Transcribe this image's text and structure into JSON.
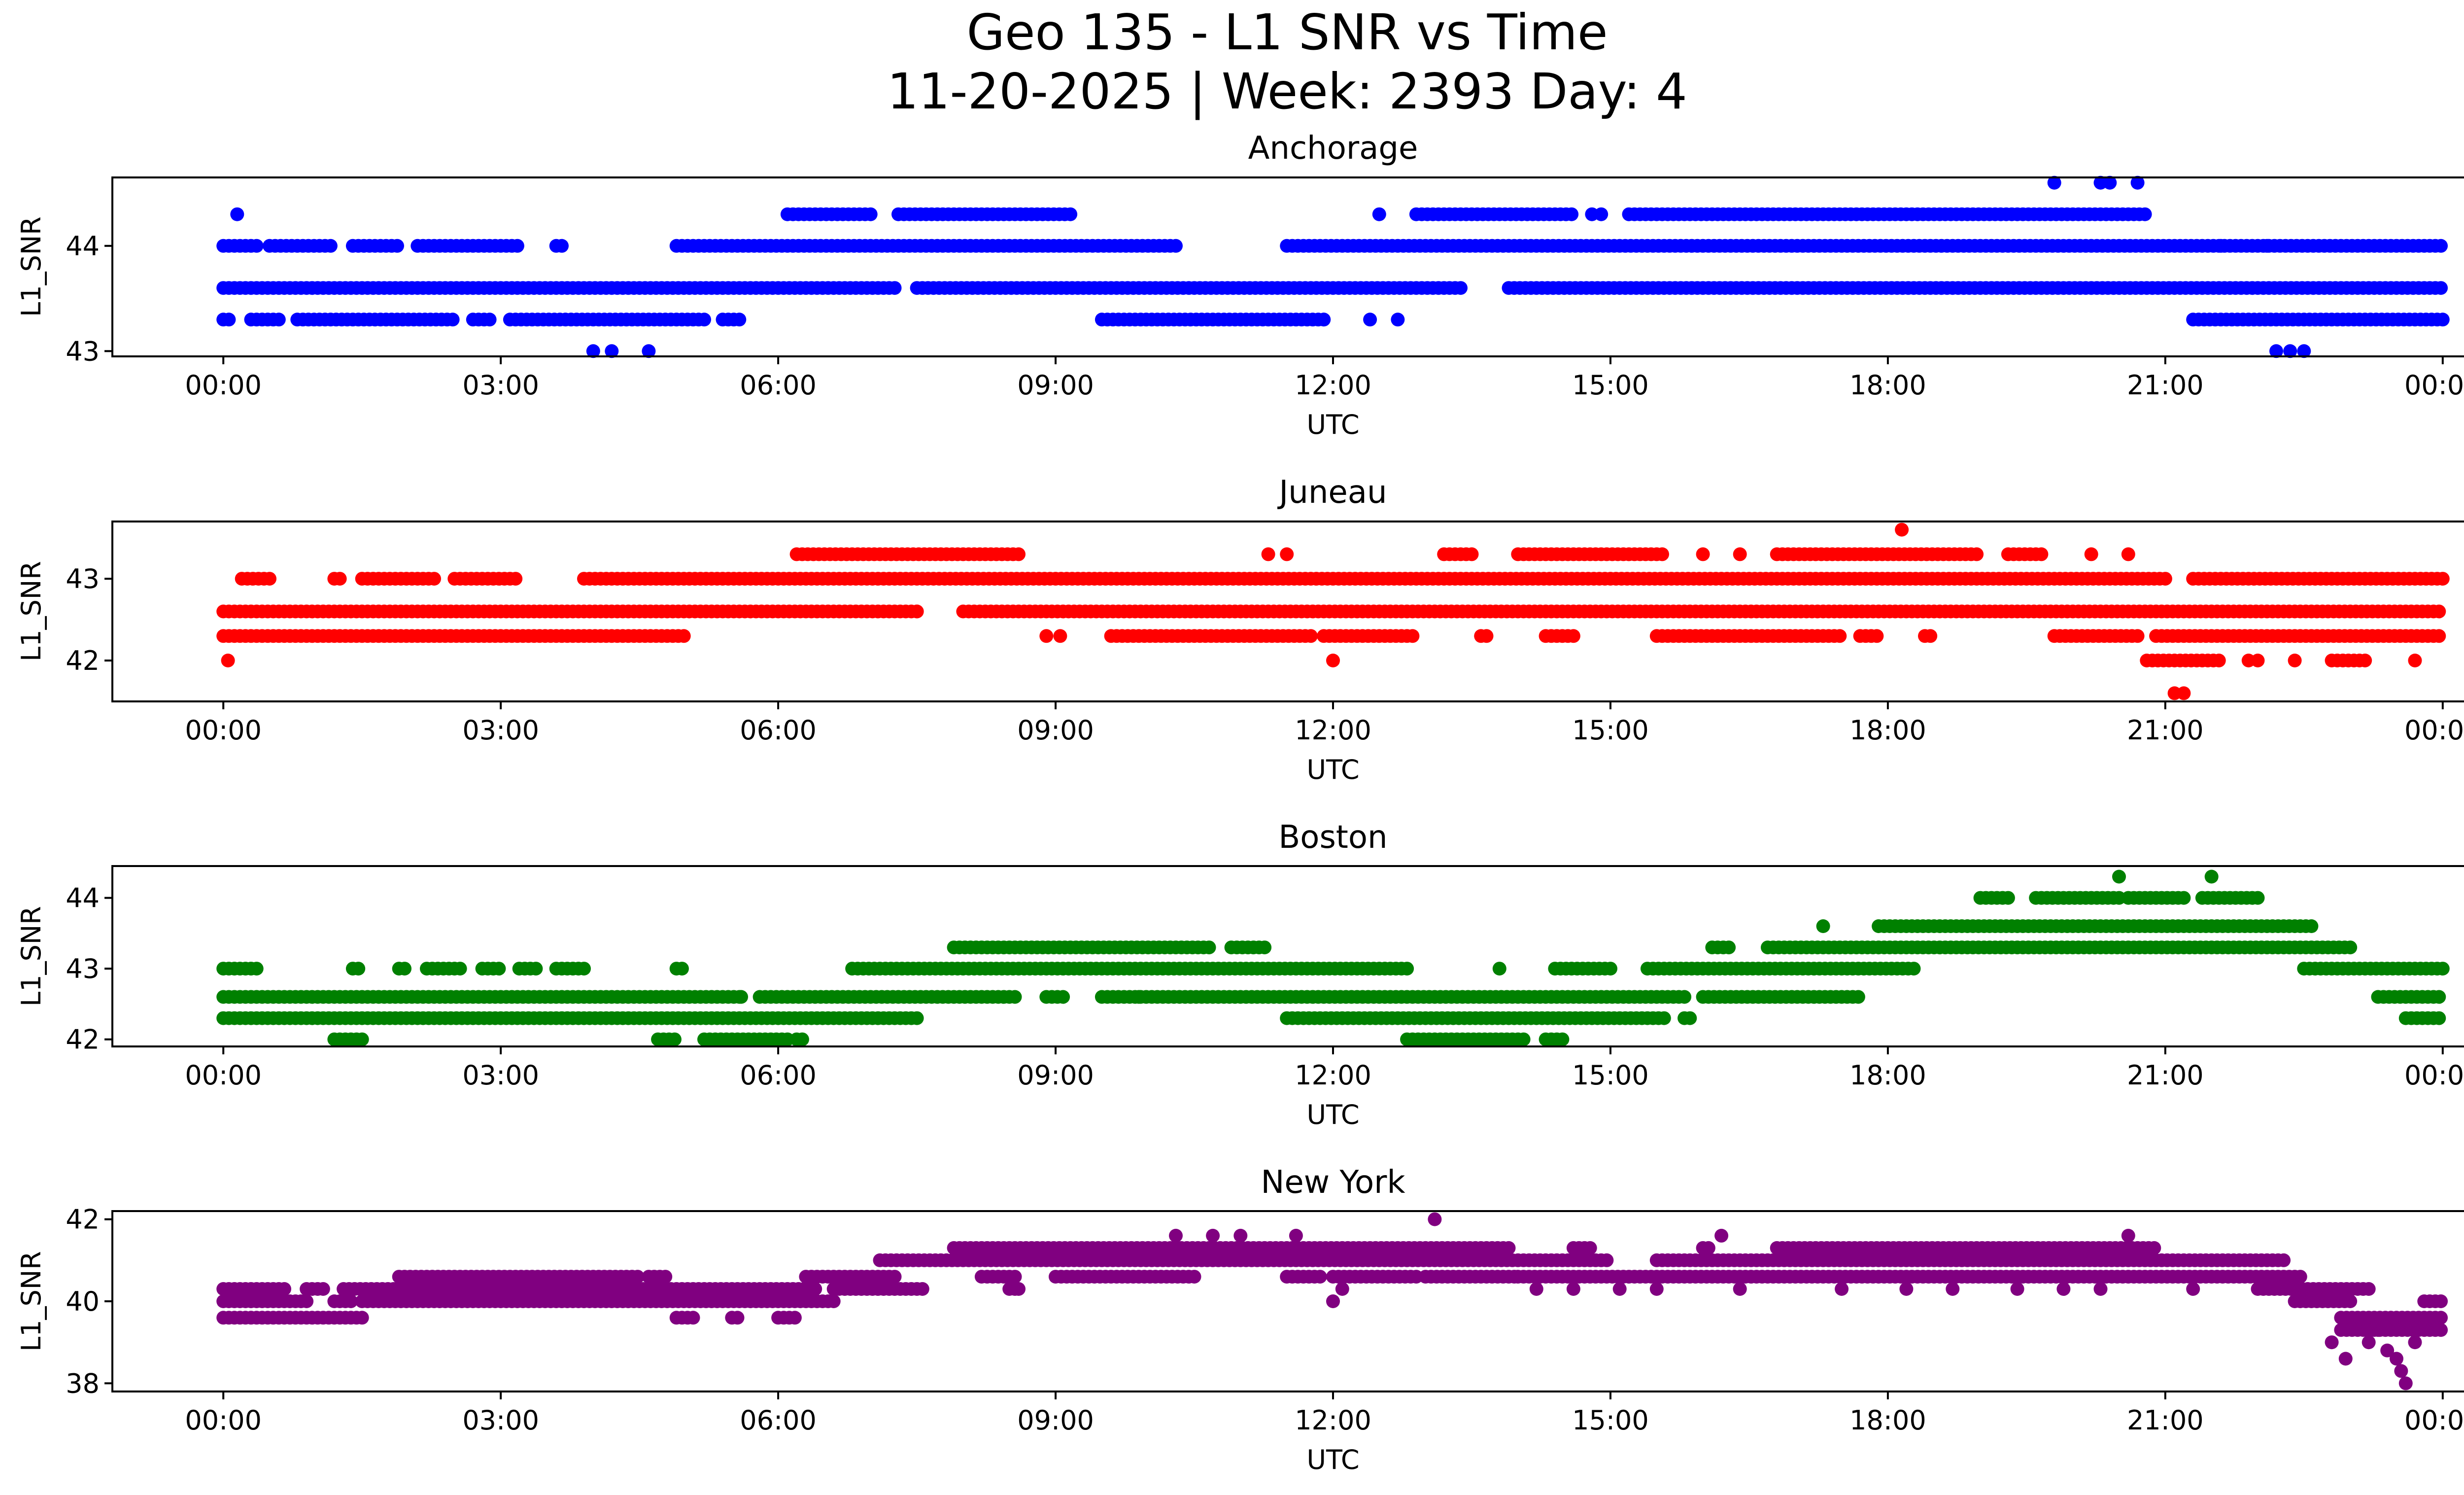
{
  "figure": {
    "title_line1": "Geo 135 - L1 SNR vs Time",
    "title_line2": "11-20-2025 | Week: 2393 Day: 4"
  },
  "chart_data": [
    {
      "type": "scatter",
      "title": "Anchorage",
      "xlabel": "UTC",
      "ylabel": "L1_SNR",
      "color": "#0000ff",
      "xlim": [
        -1.2,
        25.2
      ],
      "ylim": [
        42.95,
        44.65
      ],
      "yticks": [
        43,
        44
      ],
      "xtick_labels": [
        "00:00",
        "03:00",
        "06:00",
        "09:00",
        "12:00",
        "15:00",
        "18:00",
        "21:00",
        "00:00"
      ],
      "x_units": "hours UTC",
      "bands": [
        {
          "y": 43.6,
          "spans": [
            [
              0,
              7.3
            ],
            [
              7.5,
              13.4
            ],
            [
              13.9,
              24.0
            ]
          ]
        },
        {
          "y": 44.0,
          "spans": [
            [
              0,
              0.4
            ],
            [
              0.5,
              1.2
            ],
            [
              1.4,
              1.9
            ],
            [
              2.1,
              3.2
            ],
            [
              3.6,
              3.7
            ],
            [
              4.9,
              10.3
            ],
            [
              11.5,
              24.0
            ]
          ]
        },
        {
          "y": 43.3,
          "spans": [
            [
              0,
              0.1
            ],
            [
              0.3,
              0.6
            ],
            [
              0.8,
              2.5
            ],
            [
              2.7,
              2.9
            ],
            [
              3.1,
              5.2
            ],
            [
              5.4,
              5.6
            ],
            [
              9.5,
              11.9
            ],
            [
              21.3,
              24.0
            ]
          ]
        },
        {
          "y": 44.3,
          "spans": [
            [
              6.1,
              7.0
            ],
            [
              7.3,
              9.2
            ],
            [
              12.9,
              14.6
            ],
            [
              15.2,
              20.8
            ]
          ]
        }
      ],
      "points": [
        {
          "x": 0.15,
          "y": 44.3
        },
        {
          "x": 4.0,
          "y": 43.0
        },
        {
          "x": 4.2,
          "y": 43.0
        },
        {
          "x": 4.6,
          "y": 43.0
        },
        {
          "x": 12.5,
          "y": 44.3
        },
        {
          "x": 14.8,
          "y": 44.3
        },
        {
          "x": 14.9,
          "y": 44.3
        },
        {
          "x": 12.4,
          "y": 43.3
        },
        {
          "x": 12.7,
          "y": 43.3
        },
        {
          "x": 11.9,
          "y": 43.3
        },
        {
          "x": 19.8,
          "y": 44.6
        },
        {
          "x": 20.3,
          "y": 44.6
        },
        {
          "x": 20.4,
          "y": 44.6
        },
        {
          "x": 20.7,
          "y": 44.6
        },
        {
          "x": 22.2,
          "y": 43.0
        },
        {
          "x": 22.35,
          "y": 43.0
        },
        {
          "x": 22.5,
          "y": 43.0
        },
        {
          "x": 21.6,
          "y": 44.0
        },
        {
          "x": 22.1,
          "y": 44.0
        }
      ]
    },
    {
      "type": "scatter",
      "title": "Juneau",
      "xlabel": "UTC",
      "ylabel": "L1_SNR",
      "color": "#ff0000",
      "xlim": [
        -1.2,
        25.2
      ],
      "ylim": [
        41.5,
        43.7
      ],
      "yticks": [
        42,
        43
      ],
      "xtick_labels": [
        "00:00",
        "03:00",
        "06:00",
        "09:00",
        "12:00",
        "15:00",
        "18:00",
        "21:00",
        "00:00"
      ],
      "x_units": "hours UTC",
      "bands": [
        {
          "y": 42.6,
          "spans": [
            [
              0,
              7.5
            ],
            [
              8.0,
              24.0
            ]
          ]
        },
        {
          "y": 43.0,
          "spans": [
            [
              0.2,
              0.5
            ],
            [
              1.2,
              1.3
            ],
            [
              1.5,
              2.3
            ],
            [
              2.5,
              3.2
            ],
            [
              3.9,
              21.0
            ],
            [
              21.3,
              24.0
            ]
          ]
        },
        {
          "y": 42.3,
          "spans": [
            [
              0,
              5.0
            ],
            [
              9.6,
              11.8
            ],
            [
              11.9,
              12.9
            ],
            [
              13.6,
              13.7
            ],
            [
              14.3,
              14.6
            ],
            [
              15.5,
              17.5
            ],
            [
              17.7,
              17.9
            ],
            [
              18.4,
              18.5
            ],
            [
              19.8,
              20.7
            ],
            [
              20.9,
              24.0
            ]
          ]
        },
        {
          "y": 43.3,
          "spans": [
            [
              6.2,
              8.6
            ],
            [
              13.2,
              13.5
            ],
            [
              14.0,
              15.6
            ],
            [
              16.8,
              19.0
            ],
            [
              19.3,
              19.7
            ]
          ]
        },
        {
          "y": 42.0,
          "spans": [
            [
              20.8,
              21.6
            ],
            [
              22.8,
              23.2
            ]
          ]
        }
      ],
      "points": [
        {
          "x": 0.05,
          "y": 42.0
        },
        {
          "x": 12.0,
          "y": 42.0
        },
        {
          "x": 7.5,
          "y": 42.6
        },
        {
          "x": 8.9,
          "y": 42.3
        },
        {
          "x": 9.05,
          "y": 42.3
        },
        {
          "x": 11.3,
          "y": 43.3
        },
        {
          "x": 11.5,
          "y": 43.3
        },
        {
          "x": 16.0,
          "y": 43.3
        },
        {
          "x": 16.4,
          "y": 43.3
        },
        {
          "x": 18.15,
          "y": 43.6
        },
        {
          "x": 21.1,
          "y": 41.6
        },
        {
          "x": 21.2,
          "y": 41.6
        },
        {
          "x": 22.0,
          "y": 42.0
        },
        {
          "x": 22.4,
          "y": 42.0
        },
        {
          "x": 23.7,
          "y": 42.0
        },
        {
          "x": 21.9,
          "y": 42.0
        },
        {
          "x": 20.6,
          "y": 43.3
        },
        {
          "x": 20.2,
          "y": 43.3
        }
      ]
    },
    {
      "type": "scatter",
      "title": "Boston",
      "xlabel": "UTC",
      "ylabel": "L1_SNR",
      "color": "#008000",
      "xlim": [
        -1.2,
        25.2
      ],
      "ylim": [
        41.9,
        44.45
      ],
      "yticks": [
        42,
        43,
        44
      ],
      "xtick_labels": [
        "00:00",
        "03:00",
        "06:00",
        "09:00",
        "12:00",
        "15:00",
        "18:00",
        "21:00",
        "00:00"
      ],
      "x_units": "hours UTC",
      "bands": [
        {
          "y": 42.6,
          "spans": [
            [
              0,
              5.6
            ],
            [
              5.8,
              8.6
            ],
            [
              8.9,
              9.1
            ],
            [
              9.5,
              15.8
            ],
            [
              16.0,
              17.7
            ],
            [
              23.3,
              24.0
            ]
          ]
        },
        {
          "y": 42.3,
          "spans": [
            [
              0,
              7.5
            ],
            [
              11.5,
              15.6
            ],
            [
              15.8,
              15.9
            ],
            [
              23.6,
              24.0
            ]
          ]
        },
        {
          "y": 43.0,
          "spans": [
            [
              0,
              0.4
            ],
            [
              1.4,
              1.5
            ],
            [
              1.9,
              2.0
            ],
            [
              2.2,
              2.6
            ],
            [
              2.8,
              3.0
            ],
            [
              3.2,
              3.4
            ],
            [
              3.6,
              3.9
            ],
            [
              4.9,
              5.0
            ],
            [
              6.8,
              12.8
            ],
            [
              14.4,
              15.0
            ],
            [
              15.4,
              18.3
            ],
            [
              22.5,
              24.0
            ]
          ]
        },
        {
          "y": 43.3,
          "spans": [
            [
              7.9,
              10.7
            ],
            [
              10.9,
              11.3
            ],
            [
              16.1,
              16.3
            ],
            [
              16.7,
              23.0
            ]
          ]
        },
        {
          "y": 43.6,
          "spans": [
            [
              17.9,
              22.6
            ]
          ]
        },
        {
          "y": 44.0,
          "spans": [
            [
              19.0,
              19.3
            ],
            [
              19.6,
              20.5
            ],
            [
              20.6,
              21.2
            ],
            [
              21.4,
              22.0
            ]
          ]
        },
        {
          "y": 42.0,
          "spans": [
            [
              1.2,
              1.5
            ],
            [
              4.7,
              4.9
            ],
            [
              5.2,
              6.1
            ],
            [
              6.2,
              6.3
            ],
            [
              12.8,
              14.1
            ],
            [
              14.3,
              14.5
            ]
          ]
        }
      ],
      "points": [
        {
          "x": 17.3,
          "y": 43.6
        },
        {
          "x": 20.5,
          "y": 44.3
        },
        {
          "x": 21.5,
          "y": 44.3
        },
        {
          "x": 13.8,
          "y": 43.0
        },
        {
          "x": 5.6,
          "y": 42.6
        },
        {
          "x": 9.9,
          "y": 42.6
        }
      ]
    },
    {
      "type": "scatter",
      "title": "New York",
      "xlabel": "UTC",
      "ylabel": "L1_SNR",
      "color": "#800080",
      "xlim": [
        -1.2,
        25.2
      ],
      "ylim": [
        37.8,
        42.2
      ],
      "yticks": [
        38,
        40,
        42
      ],
      "xtick_labels": [
        "00:00",
        "03:00",
        "06:00",
        "09:00",
        "12:00",
        "15:00",
        "18:00",
        "21:00",
        "00:00"
      ],
      "x_units": "hours UTC",
      "bands": [
        {
          "y": 40.0,
          "spans": [
            [
              0,
              0.9
            ],
            [
              1.2,
              1.4
            ],
            [
              1.5,
              6.6
            ],
            [
              22.4,
              23.0
            ],
            [
              23.8,
              24.0
            ]
          ]
        },
        {
          "y": 39.6,
          "spans": [
            [
              0,
              1.5
            ],
            [
              4.9,
              5.1
            ],
            [
              5.5,
              5.6
            ],
            [
              6.0,
              6.2
            ],
            [
              22.9,
              24.0
            ]
          ]
        },
        {
          "y": 40.3,
          "spans": [
            [
              0,
              0.7
            ],
            [
              0.9,
              1.1
            ],
            [
              1.3,
              6.4
            ],
            [
              6.6,
              7.6
            ],
            [
              8.5,
              8.6
            ],
            [
              22.0,
              23.2
            ]
          ]
        },
        {
          "y": 40.6,
          "spans": [
            [
              1.9,
              4.5
            ],
            [
              4.6,
              4.8
            ],
            [
              6.3,
              7.3
            ],
            [
              8.2,
              8.6
            ],
            [
              9.0,
              10.5
            ],
            [
              11.5,
              11.9
            ],
            [
              12.0,
              12.9
            ],
            [
              13.0,
              14.0
            ],
            [
              14.0,
              22.5
            ]
          ]
        },
        {
          "y": 41.0,
          "spans": [
            [
              7.1,
              15.0
            ],
            [
              15.5,
              22.3
            ]
          ]
        },
        {
          "y": 41.3,
          "spans": [
            [
              7.9,
              13.9
            ],
            [
              14.6,
              14.8
            ],
            [
              16.0,
              16.1
            ],
            [
              16.8,
              20.9
            ]
          ]
        },
        {
          "y": 39.3,
          "spans": [
            [
              22.9,
              24.0
            ]
          ]
        }
      ],
      "points": [
        {
          "x": 10.3,
          "y": 41.6
        },
        {
          "x": 10.7,
          "y": 41.6
        },
        {
          "x": 11.0,
          "y": 41.6
        },
        {
          "x": 11.6,
          "y": 41.6
        },
        {
          "x": 13.1,
          "y": 42.0
        },
        {
          "x": 20.6,
          "y": 41.6
        },
        {
          "x": 12.0,
          "y": 40.0
        },
        {
          "x": 12.1,
          "y": 40.3
        },
        {
          "x": 8.6,
          "y": 40.3
        },
        {
          "x": 22.8,
          "y": 39.0
        },
        {
          "x": 22.95,
          "y": 38.6
        },
        {
          "x": 23.2,
          "y": 39.0
        },
        {
          "x": 23.4,
          "y": 38.8
        },
        {
          "x": 23.5,
          "y": 38.6
        },
        {
          "x": 23.55,
          "y": 38.3
        },
        {
          "x": 23.6,
          "y": 38.0
        },
        {
          "x": 23.7,
          "y": 39.0
        },
        {
          "x": 23.3,
          "y": 39.3
        },
        {
          "x": 14.2,
          "y": 40.3
        },
        {
          "x": 14.6,
          "y": 40.3
        },
        {
          "x": 15.1,
          "y": 40.3
        },
        {
          "x": 15.5,
          "y": 40.3
        },
        {
          "x": 16.4,
          "y": 40.3
        },
        {
          "x": 17.5,
          "y": 40.3
        },
        {
          "x": 18.2,
          "y": 40.3
        },
        {
          "x": 18.7,
          "y": 40.3
        },
        {
          "x": 19.4,
          "y": 40.3
        },
        {
          "x": 19.9,
          "y": 40.3
        },
        {
          "x": 20.3,
          "y": 40.3
        },
        {
          "x": 21.3,
          "y": 40.3
        },
        {
          "x": 16.2,
          "y": 41.6
        }
      ]
    }
  ]
}
